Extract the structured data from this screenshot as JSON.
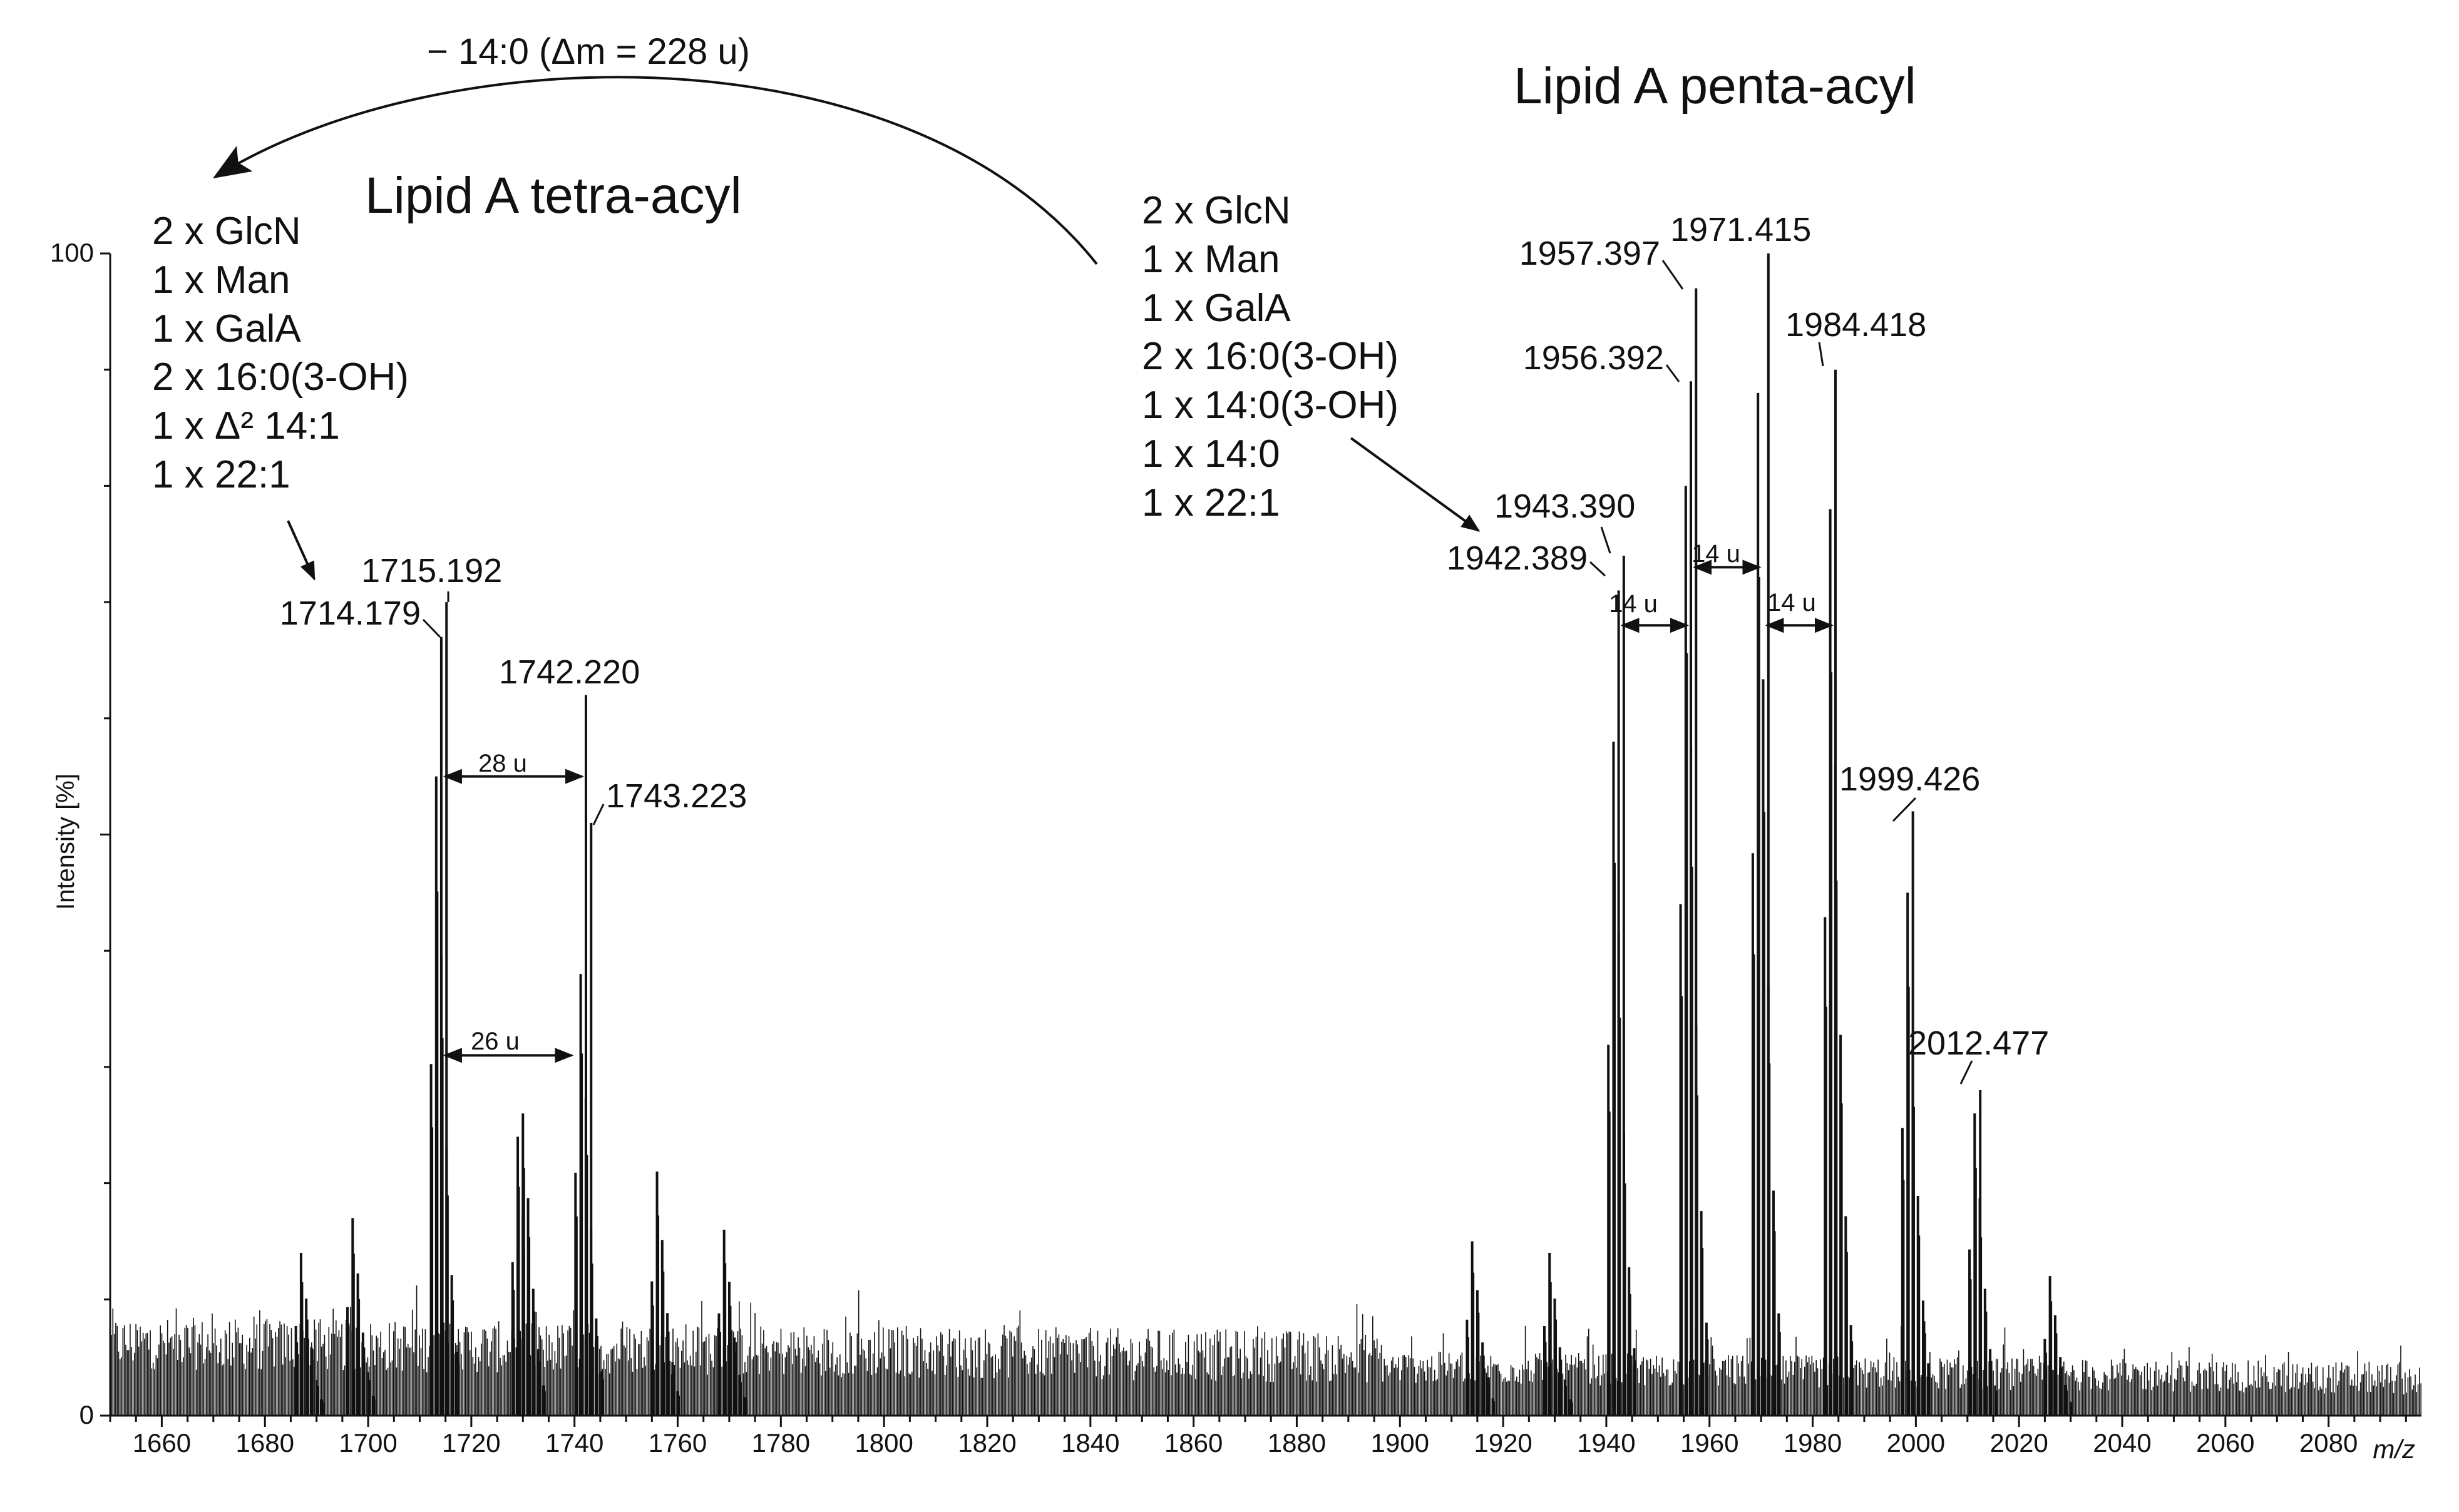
{
  "chart_data": {
    "type": "bar",
    "title": "",
    "xlabel": "m/z",
    "ylabel": "Intensity [%]",
    "xlim": [
      1650,
      2098
    ],
    "ylim": [
      0,
      100
    ],
    "x_ticks": [
      1660,
      1680,
      1700,
      1720,
      1740,
      1760,
      1780,
      1800,
      1820,
      1840,
      1860,
      1880,
      1900,
      1920,
      1940,
      1960,
      1980,
      2000,
      2020,
      2040,
      2060,
      2080
    ],
    "x_tick_labels": [
      "1660",
      "1680",
      "1700",
      "1720",
      "1740",
      "1760",
      "1780",
      "1800",
      "1820",
      "1840",
      "1860",
      "1880",
      "1900",
      "1920",
      "1940",
      "1960",
      "1980",
      "2000",
      "2020",
      "2040",
      "2060",
      "2080"
    ],
    "y_tick_labels": [
      "100",
      "0"
    ],
    "labeled_peaks": [
      {
        "label": "1714.179",
        "mz": 1714.179,
        "intensity": 67
      },
      {
        "label": "1715.192",
        "mz": 1715.192,
        "intensity": 70
      },
      {
        "label": "1742.220",
        "mz": 1742.22,
        "intensity": 62
      },
      {
        "label": "1743.223",
        "mz": 1743.223,
        "intensity": 51
      },
      {
        "label": "1942.389",
        "mz": 1942.389,
        "intensity": 71
      },
      {
        "label": "1943.390",
        "mz": 1943.39,
        "intensity": 74
      },
      {
        "label": "1956.392",
        "mz": 1956.392,
        "intensity": 89
      },
      {
        "label": "1957.397",
        "mz": 1957.397,
        "intensity": 97
      },
      {
        "label": "1971.415",
        "mz": 1971.415,
        "intensity": 100
      },
      {
        "label": "1984.418",
        "mz": 1984.418,
        "intensity": 90
      },
      {
        "label": "1999.426",
        "mz": 1999.426,
        "intensity": 52
      },
      {
        "label": "2012.477",
        "mz": 2012.477,
        "intensity": 28
      }
    ],
    "minor_peaks": [
      {
        "mz": 1687,
        "intensity": 14
      },
      {
        "mz": 1697,
        "intensity": 17
      },
      {
        "mz": 1729,
        "intensity": 24
      },
      {
        "mz": 1730,
        "intensity": 26
      },
      {
        "mz": 1756,
        "intensity": 21
      },
      {
        "mz": 1769,
        "intensity": 16
      },
      {
        "mz": 1914,
        "intensity": 15
      },
      {
        "mz": 1929,
        "intensity": 14
      },
      {
        "mz": 2026,
        "intensity": 12
      }
    ],
    "mass_differences": [
      {
        "label": "28 u",
        "from": 1714.179,
        "to": 1742.22,
        "y": 55
      },
      {
        "label": "26 u",
        "from": 1714.179,
        "to": 1740.2,
        "y": 31
      },
      {
        "label": "14 u",
        "from": 1942.389,
        "to": 1956.392,
        "y": 68
      },
      {
        "label": "14 u",
        "from": 1956.392,
        "to": 1970.4,
        "y": 73
      },
      {
        "label": "14 u",
        "from": 1970.4,
        "to": 1984.418,
        "y": 68
      }
    ],
    "annotations": {
      "loss_label": "− 14:0 (Δm = 228 u)",
      "tetra": {
        "title": "Lipid A tetra-acyl",
        "composition": [
          "2 x GlcN",
          "1 x Man",
          "1 x GalA",
          "2 x 16:0(3-OH)",
          "1 x Δ² 14:1",
          "1 x 22:1"
        ]
      },
      "penta": {
        "title": "Lipid A penta-acyl",
        "composition": [
          "2 x GlcN",
          "1 x Man",
          "1 x GalA",
          "2 x 16:0(3-OH)",
          "1 x 14:0(3-OH)",
          "1 x 14:0",
          "1 x 22:1"
        ]
      }
    }
  }
}
